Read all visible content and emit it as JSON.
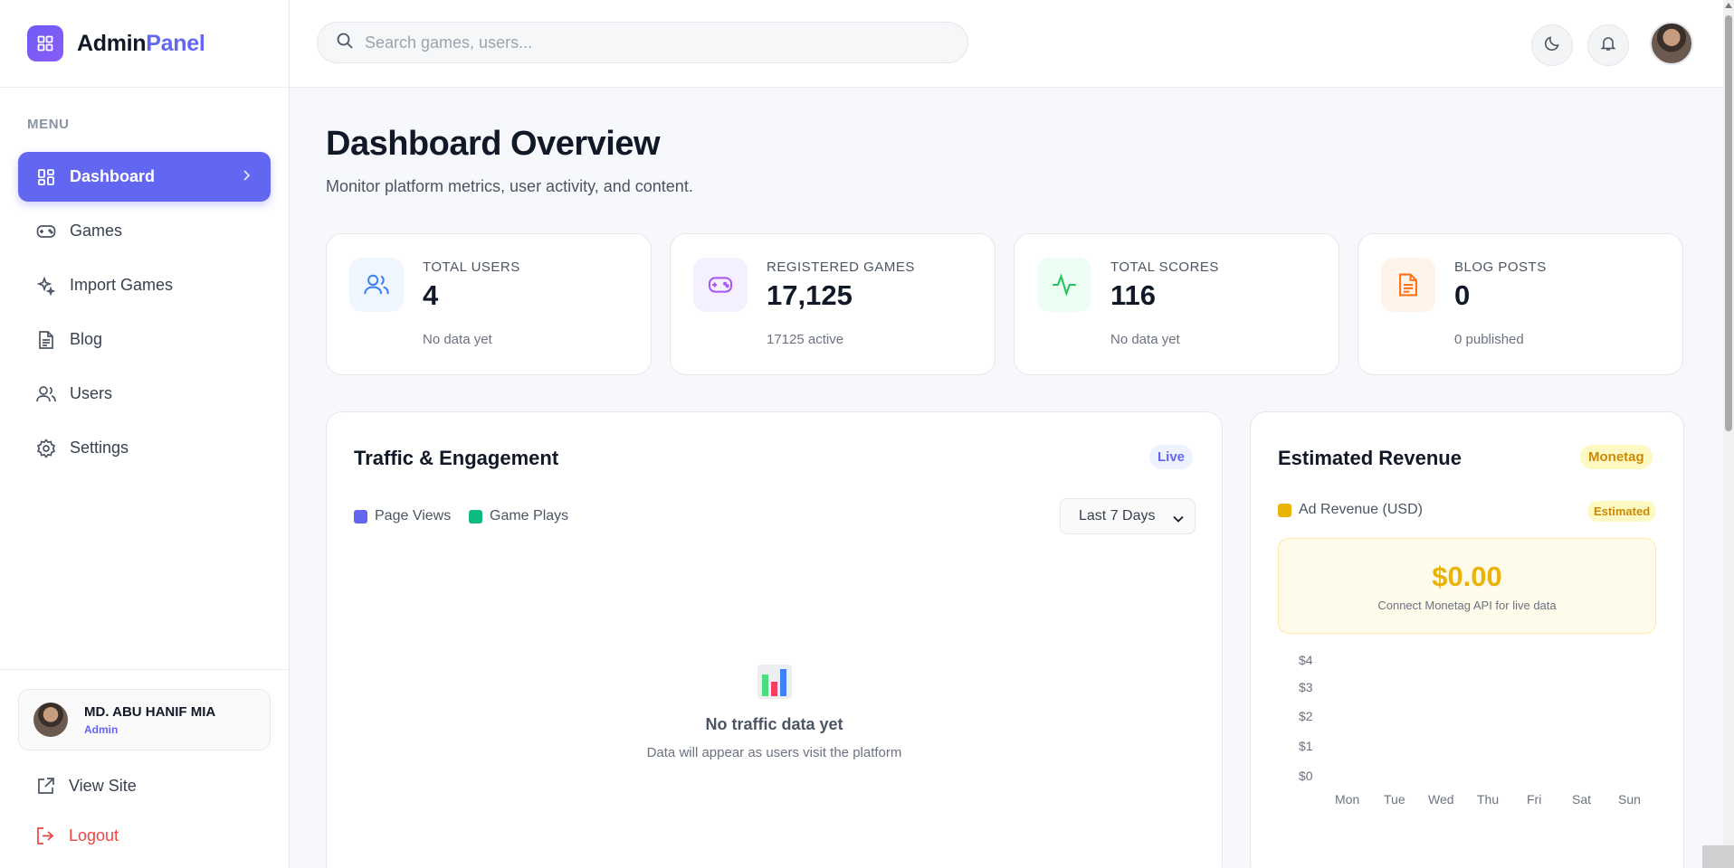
{
  "brand": {
    "part1": "Admin",
    "part2": "Panel"
  },
  "sidebar": {
    "menu_title": "MENU",
    "items": [
      {
        "label": "Dashboard",
        "icon": "dashboard-grid-icon",
        "active": true
      },
      {
        "label": "Games",
        "icon": "gamepad-icon"
      },
      {
        "label": "Import Games",
        "icon": "sparkles-icon"
      },
      {
        "label": "Blog",
        "icon": "document-icon"
      },
      {
        "label": "Users",
        "icon": "users-icon"
      },
      {
        "label": "Settings",
        "icon": "gear-icon"
      }
    ],
    "user": {
      "name": "MD. ABU HANIF MIA",
      "role": "Admin"
    },
    "view_site": "View Site",
    "logout": "Logout"
  },
  "topbar": {
    "search_placeholder": "Search games, users...",
    "icons": [
      "moon-icon",
      "bell-icon",
      "avatar"
    ]
  },
  "page": {
    "title": "Dashboard Overview",
    "subtitle": "Monitor platform metrics, user activity, and content."
  },
  "stats": [
    {
      "label": "TOTAL USERS",
      "value": "4",
      "sub": "No data yet",
      "color": "#3b82f6",
      "icon": "users-icon"
    },
    {
      "label": "REGISTERED GAMES",
      "value": "17,125",
      "sub": "17125 active",
      "color": "#a855f7",
      "icon": "gamepad-icon"
    },
    {
      "label": "TOTAL SCORES",
      "value": "116",
      "sub": "No data yet",
      "color": "#22c55e",
      "icon": "activity-icon"
    },
    {
      "label": "BLOG POSTS",
      "value": "0",
      "sub": "0 published",
      "color": "#f97316",
      "icon": "document-icon"
    }
  ],
  "traffic": {
    "title": "Traffic & Engagement",
    "badge": "Live",
    "legend": [
      {
        "label": "Page Views",
        "color": "#6366f1"
      },
      {
        "label": "Game Plays",
        "color": "#10b981"
      }
    ],
    "range": "Last 7 Days",
    "empty_title": "No traffic data yet",
    "empty_sub": "Data will appear as users visit the platform"
  },
  "revenue": {
    "title": "Estimated Revenue",
    "badge": "Monetag",
    "legend_label": "Ad Revenue (USD)",
    "legend_color": "#eab308",
    "tag": "Estimated",
    "amount": "$0.00",
    "note": "Connect Monetag API for live data",
    "y_ticks": [
      "$4",
      "$3",
      "$2",
      "$1",
      "$0"
    ],
    "x_ticks": [
      "Mon",
      "Tue",
      "Wed",
      "Thu",
      "Fri",
      "Sat",
      "Sun"
    ]
  },
  "chart_data": {
    "type": "bar",
    "categories": [
      "Mon",
      "Tue",
      "Wed",
      "Thu",
      "Fri",
      "Sat",
      "Sun"
    ],
    "series": [
      {
        "name": "Ad Revenue (USD)",
        "values": [
          0,
          0,
          0,
          0,
          0,
          0,
          0
        ]
      }
    ],
    "ylim": [
      0,
      4
    ],
    "title": "Estimated Revenue"
  }
}
